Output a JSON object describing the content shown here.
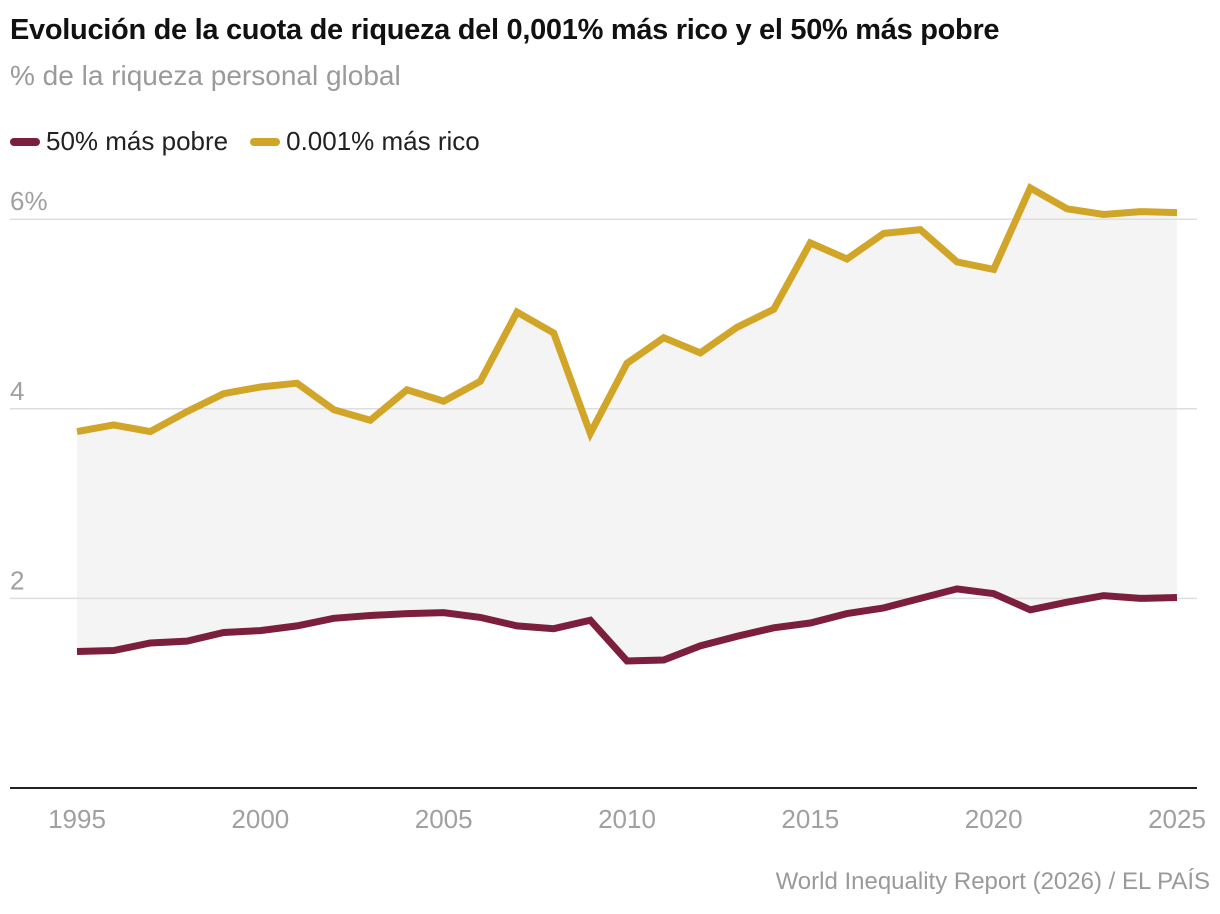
{
  "chart_data": {
    "type": "line",
    "title": "Evolución de la cuota de riqueza del 0,001% más rico y el 50% más pobre",
    "subtitle": "% de la riqueza personal global",
    "source": "World Inequality Report (2026) / EL PAÍS",
    "xlabel": "",
    "ylabel": "% de la riqueza personal global",
    "ylim": [
      0,
      6
    ],
    "y_ticks": [
      {
        "value": 6,
        "label": "6%"
      },
      {
        "value": 4,
        "label": "4"
      },
      {
        "value": 2,
        "label": "2"
      }
    ],
    "x_ticks": [
      {
        "value": 1995,
        "label": "1995"
      },
      {
        "value": 2000,
        "label": "2000"
      },
      {
        "value": 2005,
        "label": "2005"
      },
      {
        "value": 2010,
        "label": "2010"
      },
      {
        "value": 2015,
        "label": "2015"
      },
      {
        "value": 2020,
        "label": "2020"
      },
      {
        "value": 2025,
        "label": "2025"
      }
    ],
    "grid": true,
    "shaded_between_series": true,
    "legend_position": "top-left",
    "x": [
      1995,
      1996,
      1997,
      1998,
      1999,
      2000,
      2001,
      2002,
      2003,
      2004,
      2005,
      2006,
      2007,
      2008,
      2009,
      2010,
      2011,
      2012,
      2013,
      2014,
      2015,
      2016,
      2017,
      2018,
      2019,
      2020,
      2021,
      2022,
      2023,
      2024,
      2025
    ],
    "series": [
      {
        "name": "50% más pobre",
        "color": "#7b1f3c",
        "values": [
          1.44,
          1.45,
          1.53,
          1.55,
          1.64,
          1.66,
          1.71,
          1.79,
          1.82,
          1.84,
          1.85,
          1.8,
          1.71,
          1.68,
          1.77,
          1.34,
          1.35,
          1.5,
          1.6,
          1.69,
          1.74,
          1.84,
          1.9,
          2.0,
          2.1,
          2.05,
          1.88,
          1.96,
          2.03,
          2.0,
          2.01
        ]
      },
      {
        "name": "0.001% más rico",
        "color": "#d0a528",
        "values": [
          3.76,
          3.83,
          3.76,
          3.97,
          4.16,
          4.23,
          4.27,
          3.99,
          3.88,
          4.2,
          4.08,
          4.29,
          5.02,
          4.8,
          3.74,
          4.48,
          4.75,
          4.59,
          4.86,
          5.05,
          5.75,
          5.58,
          5.85,
          5.89,
          5.55,
          5.47,
          6.33,
          6.11,
          6.05,
          6.08,
          6.07
        ]
      }
    ]
  }
}
